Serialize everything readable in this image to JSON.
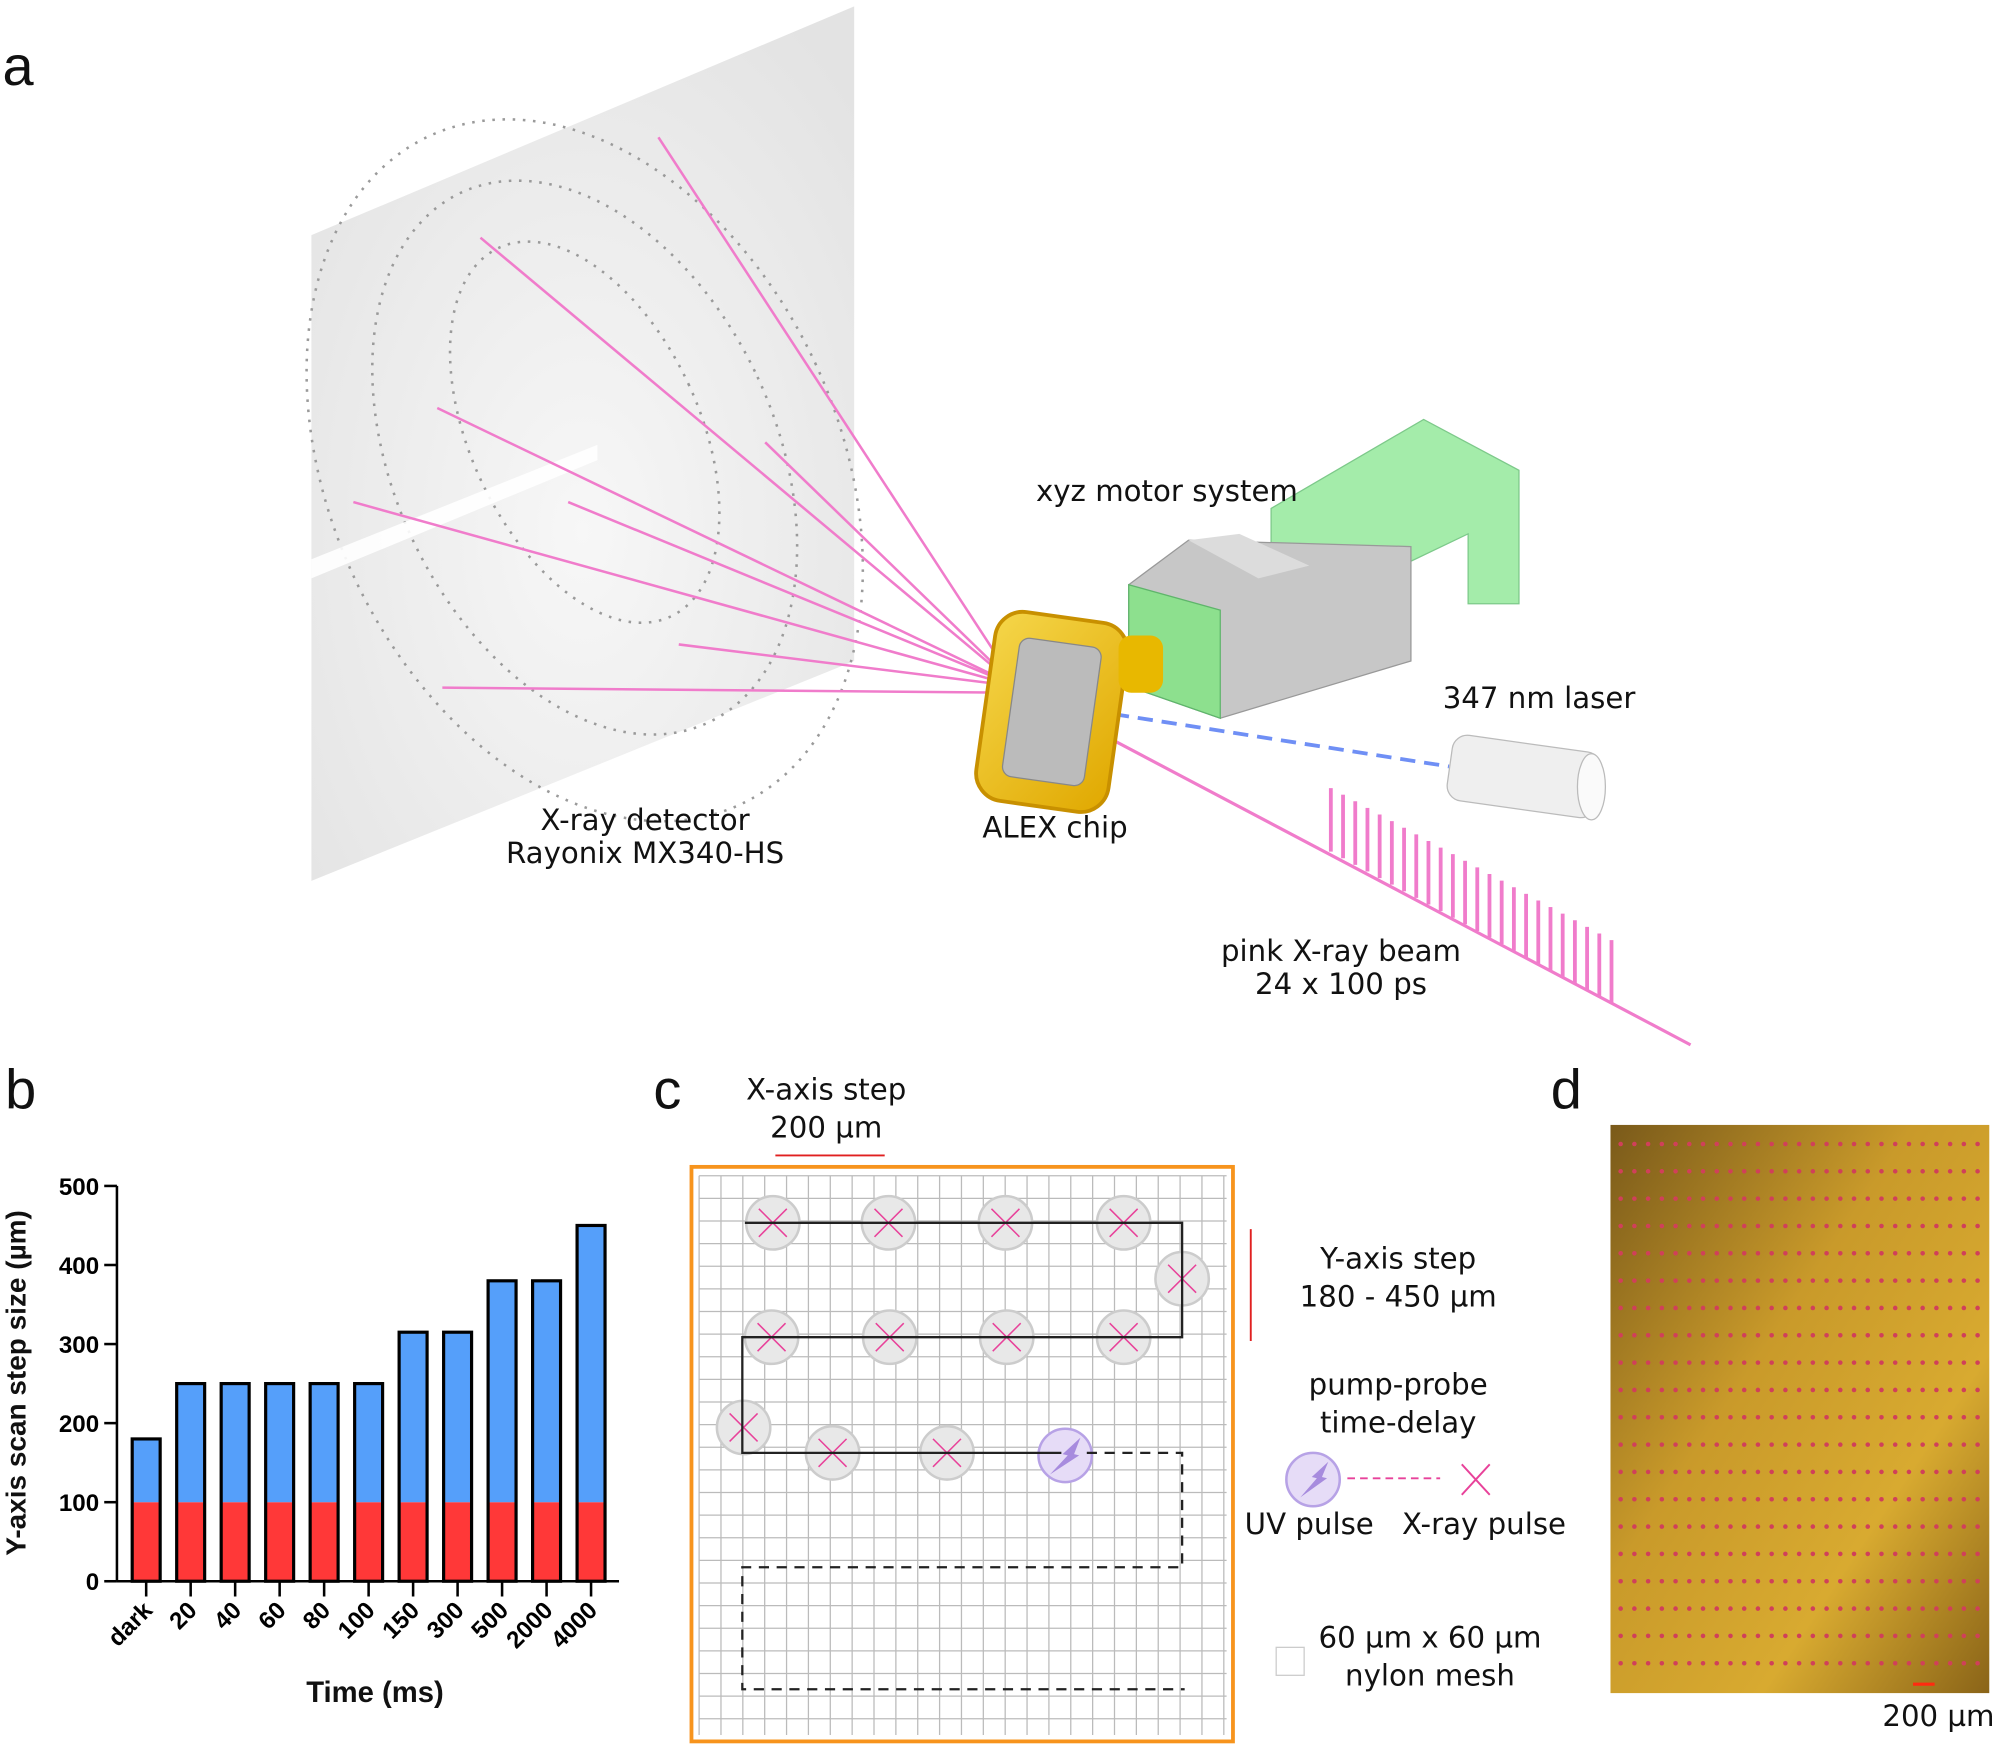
{
  "panels": {
    "a": "a",
    "b": "b",
    "c": "c",
    "d": "d"
  },
  "panel_a": {
    "detector_label": [
      "X-ray detector",
      "Rayonix MX340-HS"
    ],
    "chip_label": "ALEX chip",
    "motor_label": "xyz motor system",
    "laser_label": "347 nm laser",
    "beam_label": [
      "pink X-ray beam",
      "24 x 100 ps"
    ]
  },
  "panel_c": {
    "x_step": [
      "X-axis step",
      "200 µm"
    ],
    "y_step": [
      "Y-axis step",
      "180 - 450 µm"
    ],
    "delay": [
      "pump-probe",
      "time-delay"
    ],
    "uv_pulse": "UV pulse",
    "xray_pulse": "X-ray pulse",
    "mesh": [
      "60 µm x 60 µm",
      "nylon mesh"
    ],
    "colors": {
      "frame": "#f7941d",
      "xray": "#e8429a",
      "uv": "#a78bde"
    }
  },
  "panel_d": {
    "scale_bar": "200 µm"
  },
  "chart_data": {
    "type": "bar",
    "stacked": true,
    "title": "",
    "xlabel": "Time (ms)",
    "ylabel": "Y-axis scan step size (µm)",
    "ylim": [
      0,
      500
    ],
    "yticks": [
      "0",
      "100",
      "200",
      "300",
      "400",
      "500"
    ],
    "categories": [
      "dark",
      "20",
      "40",
      "60",
      "80",
      "100",
      "150",
      "300",
      "500",
      "2000",
      "4000"
    ],
    "series": [
      {
        "name": "base",
        "color": "#ff3838",
        "values": [
          100,
          100,
          100,
          100,
          100,
          100,
          100,
          100,
          100,
          100,
          100
        ]
      },
      {
        "name": "remainder",
        "color": "#559ffa",
        "values": [
          80,
          150,
          150,
          150,
          150,
          150,
          215,
          215,
          280,
          280,
          350
        ]
      }
    ],
    "totals": [
      180,
      250,
      250,
      250,
      250,
      250,
      315,
      315,
      380,
      380,
      450
    ]
  }
}
